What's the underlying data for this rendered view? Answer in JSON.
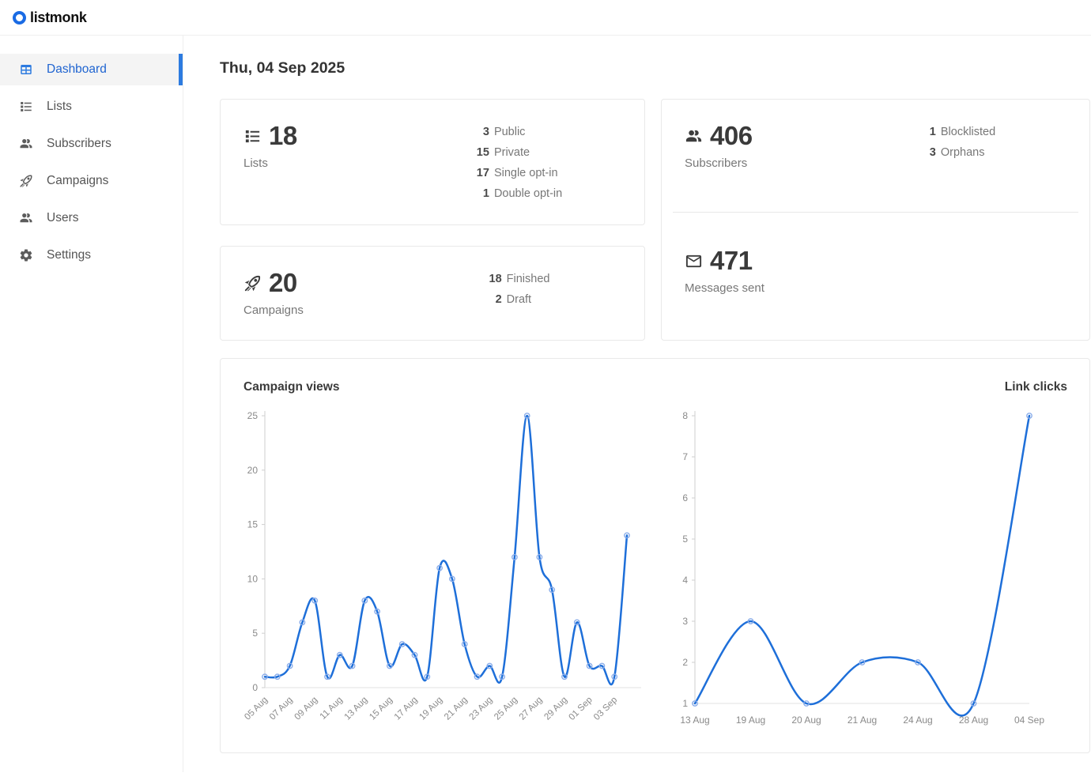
{
  "brand": {
    "name": "listmonk"
  },
  "nav": {
    "items": [
      {
        "label": "Dashboard",
        "active": true
      },
      {
        "label": "Lists",
        "active": false
      },
      {
        "label": "Subscribers",
        "active": false
      },
      {
        "label": "Campaigns",
        "active": false
      },
      {
        "label": "Users",
        "active": false
      },
      {
        "label": "Settings",
        "active": false
      }
    ]
  },
  "header": {
    "date": "Thu, 04 Sep 2025"
  },
  "stats": {
    "lists": {
      "value": "18",
      "label": "Lists",
      "breakdown": [
        {
          "value": "3",
          "label": "Public"
        },
        {
          "value": "15",
          "label": "Private"
        },
        {
          "value": "17",
          "label": "Single opt-in"
        },
        {
          "value": "1",
          "label": "Double opt-in"
        }
      ]
    },
    "campaigns": {
      "value": "20",
      "label": "Campaigns",
      "breakdown": [
        {
          "value": "18",
          "label": "Finished"
        },
        {
          "value": "2",
          "label": "Draft"
        }
      ]
    },
    "subscribers": {
      "value": "406",
      "label": "Subscribers",
      "breakdown": [
        {
          "value": "1",
          "label": "Blocklisted"
        },
        {
          "value": "3",
          "label": "Orphans"
        }
      ]
    },
    "messages": {
      "value": "471",
      "label": "Messages sent"
    }
  },
  "chart_data": [
    {
      "type": "line",
      "title": "Campaign views",
      "values": [
        1,
        1,
        2,
        6,
        8,
        1,
        3,
        2,
        8,
        7,
        2,
        4,
        3,
        1,
        11,
        10,
        4,
        1,
        2,
        1,
        12,
        25,
        12,
        9,
        1,
        6,
        2,
        2,
        1,
        14
      ],
      "x_tick_labels": [
        "05 Aug",
        "07 Aug",
        "09 Aug",
        "11 Aug",
        "13 Aug",
        "15 Aug",
        "17 Aug",
        "19 Aug",
        "21 Aug",
        "23 Aug",
        "25 Aug",
        "27 Aug",
        "29 Aug",
        "01 Sep",
        "03 Sep"
      ],
      "x_tick_every": 2,
      "rotate_x_labels": true,
      "ylim": [
        0,
        25
      ],
      "yticks": [
        0,
        5,
        10,
        15,
        20,
        25
      ],
      "grid": false,
      "legend_position": "none"
    },
    {
      "type": "line",
      "title": "Link clicks",
      "categories": [
        "13 Aug",
        "19 Aug",
        "20 Aug",
        "21 Aug",
        "24 Aug",
        "28 Aug",
        "04 Sep"
      ],
      "values": [
        1,
        3,
        1,
        2,
        2,
        1,
        8
      ],
      "rotate_x_labels": false,
      "ylim": [
        1,
        8
      ],
      "yticks": [
        1,
        2,
        3,
        4,
        5,
        6,
        7,
        8
      ],
      "grid": false,
      "legend_position": "none"
    }
  ],
  "colors": {
    "accent": "#2065d1",
    "active_bar": "#2d7be0",
    "logo": "#1a6be4",
    "chart_line": "#1e6fd9",
    "chart_marker": "#8aadea",
    "axis": "#cfcfcf",
    "axis_light": "#e2e2e2",
    "tick_text": "#8a8a8a"
  }
}
